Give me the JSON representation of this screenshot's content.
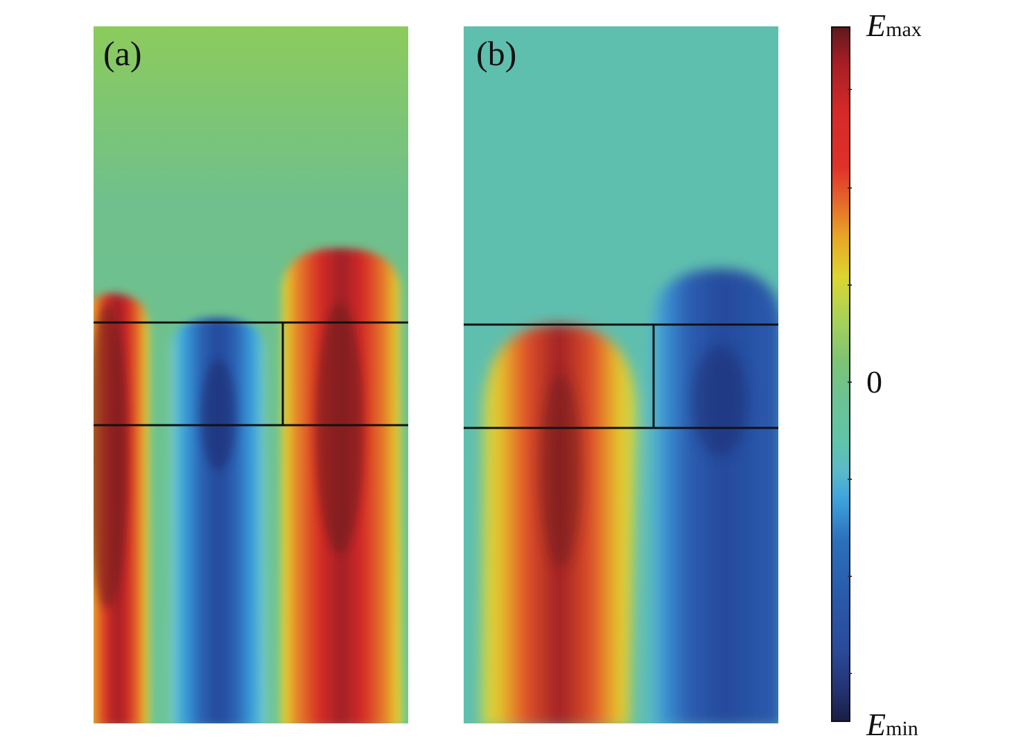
{
  "panels": [
    {
      "label": "(a)"
    },
    {
      "label": "(b)"
    }
  ],
  "colorbar": {
    "max_symbol": "E",
    "max_subscript": "max",
    "zero_label": "0",
    "min_symbol": "E",
    "min_subscript": "min"
  }
}
